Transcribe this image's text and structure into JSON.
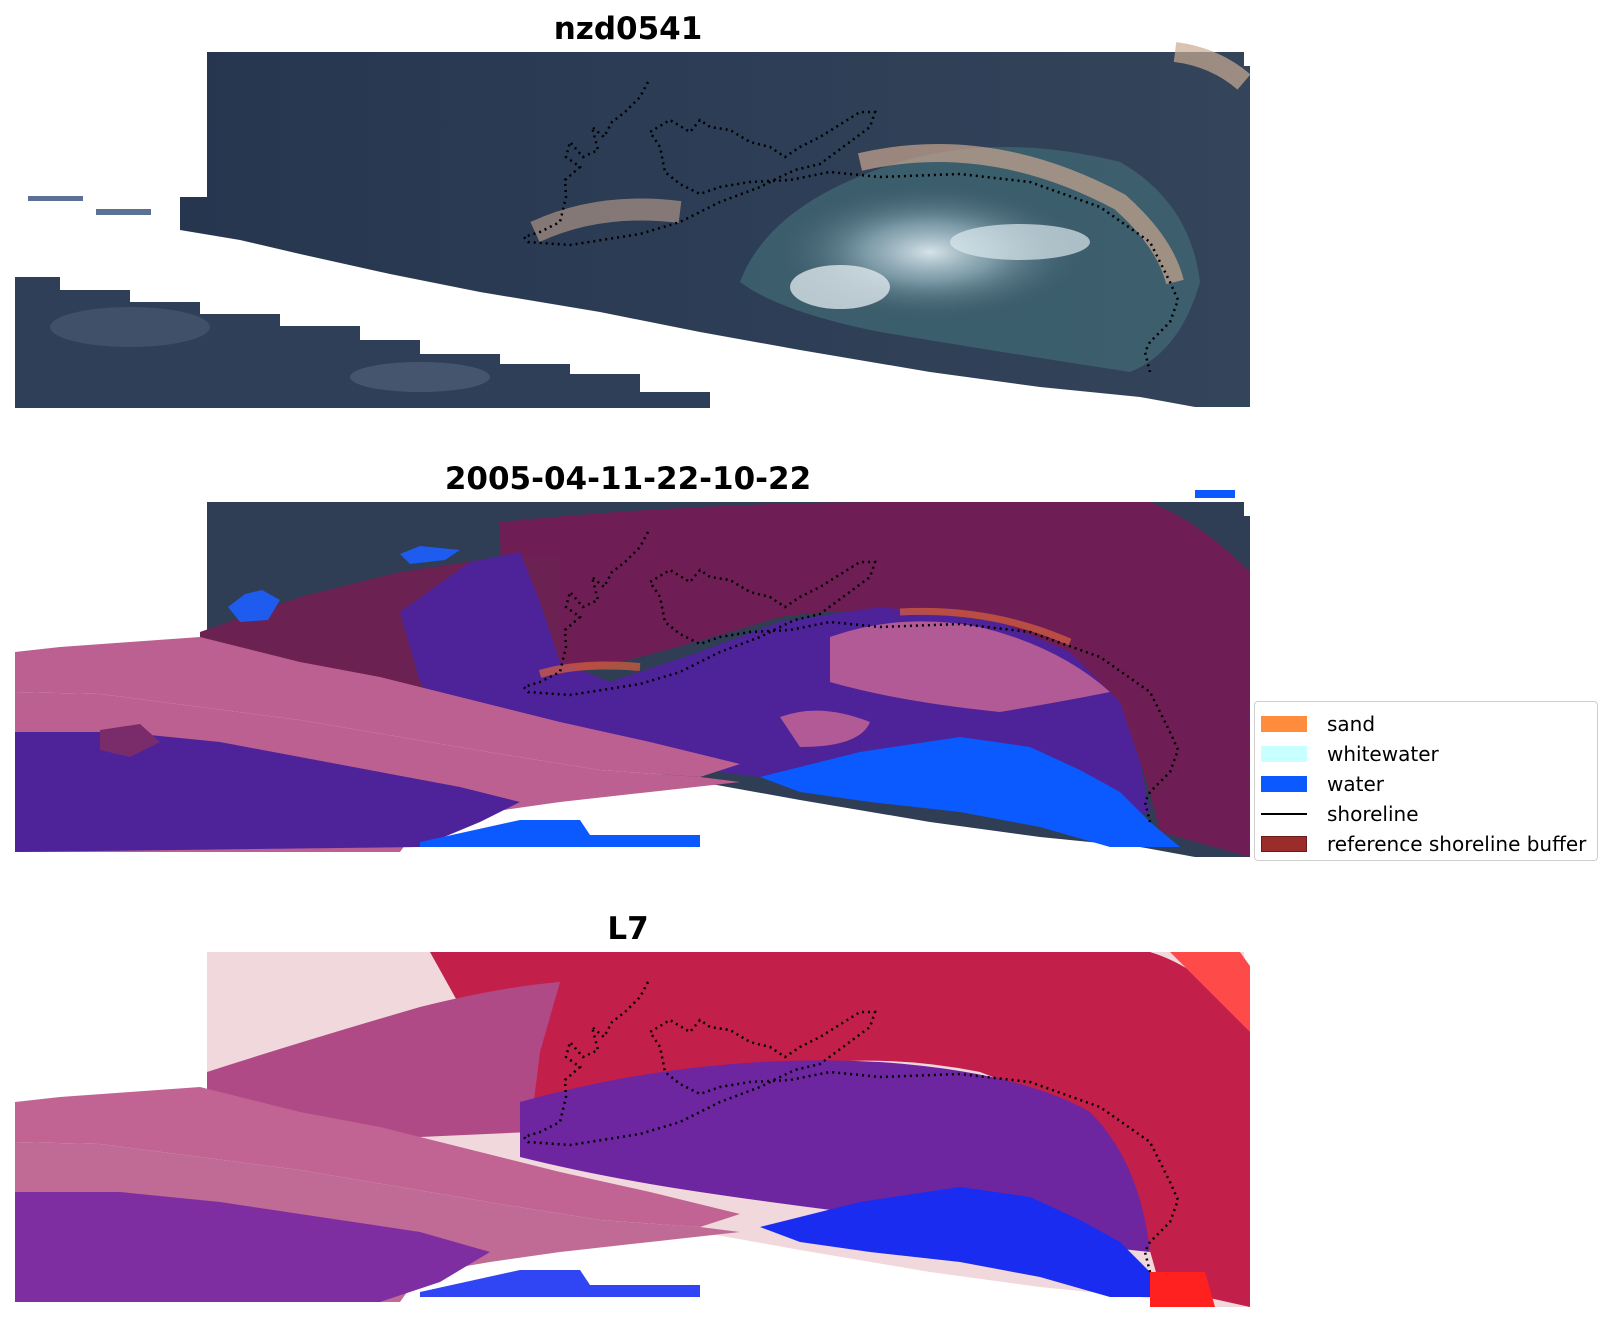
{
  "panels": [
    {
      "title": "nzd0541"
    },
    {
      "title": "2005-04-11-22-10-22"
    },
    {
      "title": "L7"
    }
  ],
  "legend": {
    "items": [
      {
        "label": "sand",
        "color": "#ff8c3c"
      },
      {
        "label": "whitewater",
        "color": "#c8ffff"
      },
      {
        "label": "water",
        "color": "#0a5aff"
      },
      {
        "label": "shoreline",
        "color": "#000000",
        "kind": "line"
      },
      {
        "label": "reference shoreline buffer",
        "color": "#9b2c2c"
      }
    ]
  },
  "colors": {
    "water": "#0a5aff",
    "sand": "#ff8c3c",
    "whitewater": "#c8ffff",
    "shoreline": "#000000",
    "reference_buffer": "#9b2c2c",
    "classified_water_overlay": "#4e239a"
  }
}
